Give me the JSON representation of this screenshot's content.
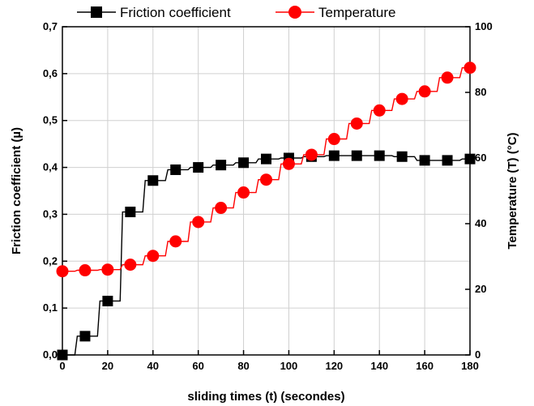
{
  "chart_data": {
    "type": "line",
    "xlabel": "sliding times (t) (secondes)",
    "ylabel": "Friction coefficient (µ)",
    "y2label": "Temperature (T) (°C)",
    "xlim": [
      0,
      180
    ],
    "ylim": [
      0,
      0.7
    ],
    "y2lim": [
      0,
      100
    ],
    "x_ticks": [
      "0",
      "20",
      "40",
      "60",
      "80",
      "100",
      "120",
      "140",
      "160",
      "180"
    ],
    "y_ticks": [
      "0,0",
      "0,1",
      "0,2",
      "0,3",
      "0,4",
      "0,5",
      "0,6",
      "0,7"
    ],
    "y2_ticks": [
      "0",
      "20",
      "40",
      "60",
      "80",
      "100"
    ],
    "grid": true,
    "legend_position": "top",
    "series": [
      {
        "name": "Friction coefficient",
        "axis": "left",
        "color": "#000000",
        "marker": "square",
        "x": [
          0,
          10,
          20,
          30,
          40,
          50,
          60,
          70,
          80,
          90,
          100,
          110,
          120,
          130,
          140,
          150,
          160,
          170,
          180
        ],
        "y": [
          0.0,
          0.04,
          0.115,
          0.305,
          0.372,
          0.395,
          0.4,
          0.405,
          0.41,
          0.418,
          0.42,
          0.423,
          0.425,
          0.425,
          0.425,
          0.423,
          0.415,
          0.415,
          0.418
        ]
      },
      {
        "name": "Temperature",
        "axis": "right",
        "color": "#ff0000",
        "marker": "circle",
        "x": [
          0,
          10,
          20,
          30,
          40,
          50,
          60,
          70,
          80,
          90,
          100,
          110,
          120,
          130,
          140,
          150,
          160,
          170,
          180
        ],
        "y": [
          25.5,
          25.8,
          26,
          27.5,
          30.2,
          34.6,
          40.5,
          44.8,
          49.5,
          53.4,
          58.2,
          61,
          65.8,
          70.5,
          74.5,
          78,
          80.3,
          84.5,
          87.5
        ]
      }
    ]
  }
}
